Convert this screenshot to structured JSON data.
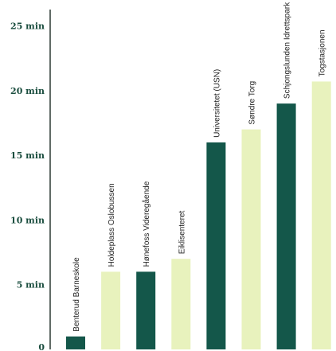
{
  "chart_data": {
    "type": "bar",
    "orientation": "vertical",
    "categories": [
      "Benterud Barneskole",
      "Holdeplass Oslobussen",
      "Hønefoss Videregående",
      "Eiklisenteret",
      "Universitetet (USN)",
      "Søndre Torg",
      "Schjongslunden Idrettspark",
      "Togstasjonen"
    ],
    "values": [
      1,
      6,
      6,
      7,
      16,
      17,
      19,
      20.7
    ],
    "y_ticks": [
      "0",
      "5 min",
      "10 min",
      "15 min",
      "20 min",
      "25 min"
    ],
    "y_tick_values": [
      0,
      5,
      10,
      15,
      20,
      25
    ],
    "ylim": [
      0,
      27
    ],
    "grid": false,
    "legend": "none",
    "bar_colors": [
      "#14574a",
      "#e8f2bd"
    ],
    "axis_color": "#2b3a33",
    "tick_color": "#1a4d3e"
  }
}
